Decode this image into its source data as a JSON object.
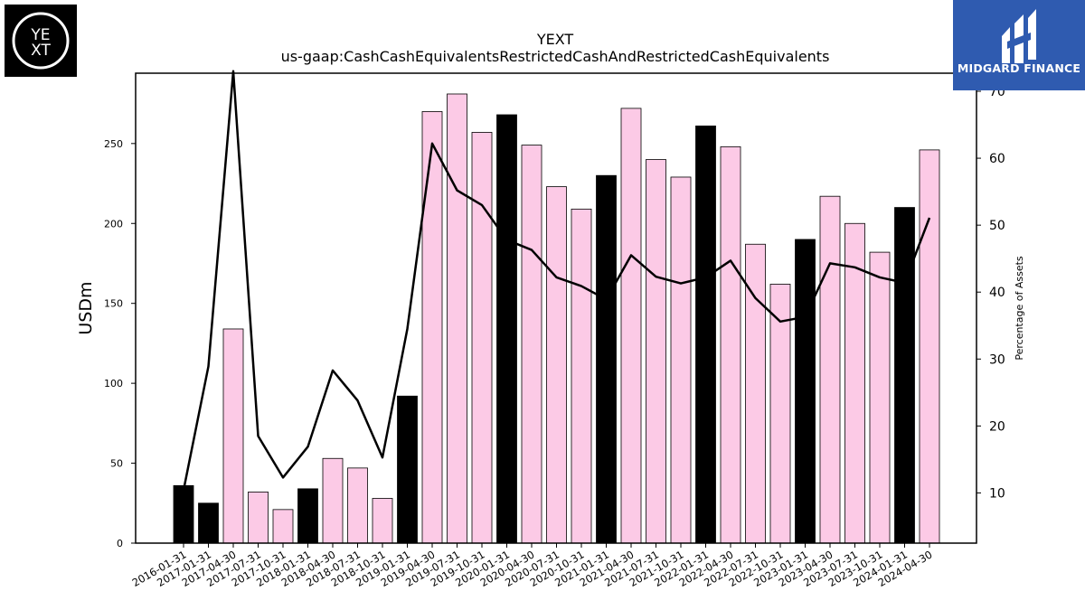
{
  "logos": {
    "left": {
      "text_top": "YE",
      "text_bottom": "XT"
    },
    "right": {
      "text": "MIDGARD FINANCE"
    }
  },
  "colors": {
    "bar_pink": "#fccae6",
    "bar_black": "#000000",
    "line": "#000000",
    "brand_blue": "#2f5bb0"
  },
  "chart_data": {
    "type": "bar",
    "title": "YEXT",
    "subtitle": "us-gaap:CashCashEquivalentsRestrictedCashAndRestrictedCashEquivalents",
    "ylabel": "USDm",
    "ylabel_right": "Percentage of Assets",
    "ylim": [
      0,
      294
    ],
    "ylim_right": [
      2.5,
      72.7
    ],
    "yticks": [
      0,
      50,
      100,
      150,
      200,
      250
    ],
    "yticks_right": [
      10,
      20,
      30,
      40,
      50,
      60,
      70
    ],
    "categories": [
      "2016-01-31",
      "2017-01-31",
      "2017-04-30",
      "2017-07-31",
      "2017-10-31",
      "2018-01-31",
      "2018-04-30",
      "2018-07-31",
      "2018-10-31",
      "2019-01-31",
      "2019-04-30",
      "2019-07-31",
      "2019-10-31",
      "2020-01-31",
      "2020-04-30",
      "2020-07-31",
      "2020-10-31",
      "2021-01-31",
      "2021-04-30",
      "2021-07-31",
      "2021-10-31",
      "2022-01-31",
      "2022-04-30",
      "2022-07-31",
      "2022-10-31",
      "2023-01-31",
      "2023-04-30",
      "2023-07-31",
      "2023-10-31",
      "2024-01-31",
      "2024-04-30"
    ],
    "series": [
      {
        "type": "bar",
        "values": [
          36,
          25,
          134,
          32,
          21,
          34,
          53,
          47,
          28,
          92,
          270,
          281,
          257,
          268,
          249,
          223,
          209,
          230,
          272,
          240,
          229,
          261,
          248,
          187,
          162,
          190,
          217,
          200,
          182,
          210,
          246
        ],
        "fiscal_year_end": [
          true,
          true,
          false,
          false,
          false,
          true,
          false,
          false,
          false,
          true,
          false,
          false,
          false,
          true,
          false,
          false,
          false,
          true,
          false,
          false,
          false,
          true,
          false,
          false,
          false,
          true,
          false,
          false,
          false,
          true,
          false
        ]
      },
      {
        "type": "line",
        "axis": "right",
        "values": [
          10.4,
          28.9,
          73.0,
          18.5,
          12.3,
          16.9,
          28.3,
          23.8,
          15.3,
          34.5,
          62.2,
          55.2,
          53.0,
          47.8,
          46.3,
          42.2,
          40.9,
          38.9,
          45.5,
          42.3,
          41.3,
          42.2,
          44.7,
          39.1,
          35.6,
          36.3,
          44.3,
          43.7,
          42.2,
          41.4,
          51.1
        ]
      }
    ]
  }
}
